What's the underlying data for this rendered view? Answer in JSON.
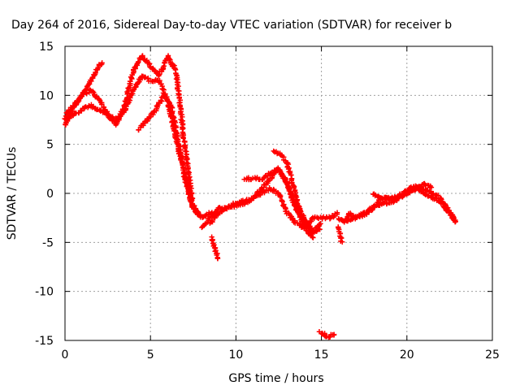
{
  "chart_data": {
    "type": "scatter",
    "title": "Day 264 of 2016, Sidereal Day-to-day VTEC variation (SDTVAR) for receiver b",
    "xlabel": "GPS time / hours",
    "ylabel": "SDTVAR / TECUs",
    "xlim": [
      0,
      25
    ],
    "ylim": [
      -15,
      15
    ],
    "x_ticks": [
      "0",
      "5",
      "10",
      "15",
      "20",
      "25"
    ],
    "y_ticks": [
      "15",
      "10",
      "5",
      "0",
      "-5",
      "-10",
      "-15"
    ],
    "grid": true,
    "marker": "plus",
    "series_color": "#ff0000",
    "tracks": [
      {
        "x": [
          0.0,
          0.4,
          0.8,
          1.2,
          1.6,
          2.0,
          2.2
        ],
        "y": [
          7.0,
          8.5,
          9.5,
          10.5,
          11.8,
          13.0,
          13.5
        ]
      },
      {
        "x": [
          0.0,
          0.5,
          1.0,
          1.5,
          2.0,
          2.5,
          3.0,
          3.5,
          4.0,
          4.5,
          5.0,
          5.5,
          6.0,
          6.5,
          7.0,
          7.5,
          8.0,
          8.5,
          9.0
        ],
        "y": [
          7.5,
          8.0,
          8.5,
          9.0,
          8.5,
          8.0,
          7.5,
          8.5,
          10.5,
          12.0,
          11.5,
          11.5,
          9.5,
          5.5,
          2.0,
          -1.5,
          -2.5,
          -2.0,
          -2.0
        ]
      },
      {
        "x": [
          0.0,
          0.5,
          1.0,
          1.5,
          2.0,
          2.5,
          3.0,
          3.5,
          4.0,
          4.5,
          5.0,
          5.5,
          6.0,
          6.5,
          7.0,
          7.5,
          8.0
        ],
        "y": [
          8.0,
          9.0,
          10.0,
          10.5,
          9.5,
          8.0,
          7.0,
          9.0,
          12.5,
          14.0,
          13.0,
          12.0,
          14.0,
          12.5,
          5.0,
          -1.5,
          -2.5
        ]
      },
      {
        "x": [
          4.3,
          4.8,
          5.3,
          5.8,
          6.2,
          6.6,
          7.0,
          7.4,
          7.8
        ],
        "y": [
          6.5,
          7.5,
          8.5,
          10.0,
          9.0,
          5.5,
          1.5,
          -1.0,
          -2.0
        ]
      },
      {
        "x": [
          8.0,
          8.5,
          9.0,
          9.5,
          10.0,
          10.5,
          11.0,
          11.5,
          12.0,
          12.5,
          13.0,
          13.5,
          14.0,
          14.5,
          15.0,
          15.5,
          16.0
        ],
        "y": [
          -3.5,
          -2.5,
          -1.5,
          -1.5,
          -1.0,
          -0.8,
          -0.5,
          0.0,
          0.5,
          0.0,
          -2.0,
          -3.0,
          -3.5,
          -2.5,
          -2.5,
          -2.5,
          -2.0
        ]
      },
      {
        "x": [
          8.5,
          9.0,
          9.5,
          10.0,
          10.5,
          11.0,
          11.5,
          12.0,
          12.5,
          13.0,
          13.5,
          14.0,
          14.5,
          15.0
        ],
        "y": [
          -3.0,
          -2.0,
          -1.5,
          -1.2,
          -1.0,
          -0.5,
          0.5,
          1.5,
          2.5,
          1.0,
          -1.5,
          -3.0,
          -4.0,
          -3.0
        ]
      },
      {
        "x": [
          10.5,
          11.0,
          11.5,
          12.0,
          12.5,
          13.0,
          13.5,
          14.0,
          14.5,
          15.0
        ],
        "y": [
          1.5,
          1.5,
          1.5,
          2.0,
          2.5,
          1.0,
          -1.0,
          -2.5,
          -4.0,
          -3.5
        ]
      },
      {
        "x": [
          12.2,
          12.6,
          13.0,
          13.4,
          13.8,
          14.2,
          14.6
        ],
        "y": [
          4.3,
          4.0,
          3.0,
          0.5,
          -2.5,
          -4.0,
          -4.5
        ]
      },
      {
        "x": [
          8.6,
          8.8,
          9.0
        ],
        "y": [
          -4.5,
          -5.8,
          -6.8
        ]
      },
      {
        "x": [
          16.0,
          16.3,
          16.6,
          17.0,
          17.5,
          18.0,
          18.5,
          19.0,
          19.5,
          20.0,
          20.5,
          21.0,
          21.5,
          22.0,
          22.5,
          22.9
        ],
        "y": [
          -2.5,
          -3.0,
          -2.0,
          -2.5,
          -2.0,
          -1.5,
          -1.0,
          -1.0,
          -0.5,
          0.0,
          0.5,
          0.5,
          0.0,
          -0.5,
          -2.0,
          -3.0
        ]
      },
      {
        "x": [
          16.5,
          17.0,
          17.5,
          18.0,
          18.5,
          19.0,
          19.5,
          20.0,
          20.5,
          21.0,
          21.5,
          22.0,
          22.5,
          22.9
        ],
        "y": [
          -2.8,
          -2.5,
          -2.2,
          -1.5,
          -0.5,
          -0.5,
          -0.2,
          0.3,
          0.8,
          0.0,
          -0.5,
          -1.0,
          -2.0,
          -3.0
        ]
      },
      {
        "x": [
          18.0,
          18.5,
          19.0,
          19.5,
          20.0,
          20.5,
          21.0,
          21.5
        ],
        "y": [
          0.0,
          -0.5,
          -0.5,
          -0.5,
          0.0,
          0.5,
          1.0,
          0.5
        ]
      },
      {
        "x": [
          16.0,
          16.1,
          16.2
        ],
        "y": [
          -3.5,
          -4.2,
          -5.0
        ]
      },
      {
        "x": [
          14.9,
          15.1,
          15.3,
          15.5,
          15.7,
          15.8
        ],
        "y": [
          -14.2,
          -14.3,
          -14.5,
          -14.6,
          -14.4,
          -14.3
        ]
      }
    ]
  }
}
